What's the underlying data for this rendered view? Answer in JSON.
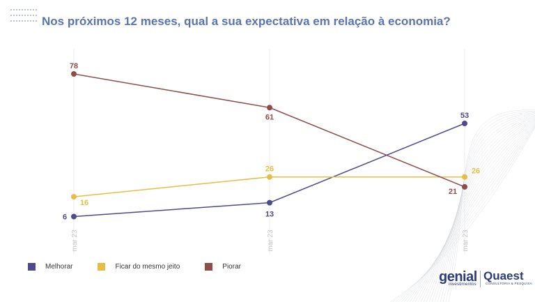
{
  "title": "Nos próximos 12 meses, qual a sua expectativa em relação à economia?",
  "chart_data": {
    "type": "line",
    "categories": [
      "mar 23",
      "mar 23",
      "mar 23"
    ],
    "series": [
      {
        "name": "Melhorar",
        "values": [
          6,
          13,
          53
        ],
        "color": "#4e4a8c"
      },
      {
        "name": "Ficar do mesmo jeito",
        "values": [
          16,
          26,
          26
        ],
        "color": "#e6bd45"
      },
      {
        "name": "Piorar",
        "values": [
          78,
          61,
          21
        ],
        "color": "#8e4c4c"
      }
    ],
    "grid": "vertical",
    "legend_position": "bottom-left"
  },
  "brand": {
    "genial": "genial",
    "genial_sub": "investimentos",
    "quaest": "Quaest",
    "quaest_sub": "CONSULTORIA & PESQUISA"
  }
}
